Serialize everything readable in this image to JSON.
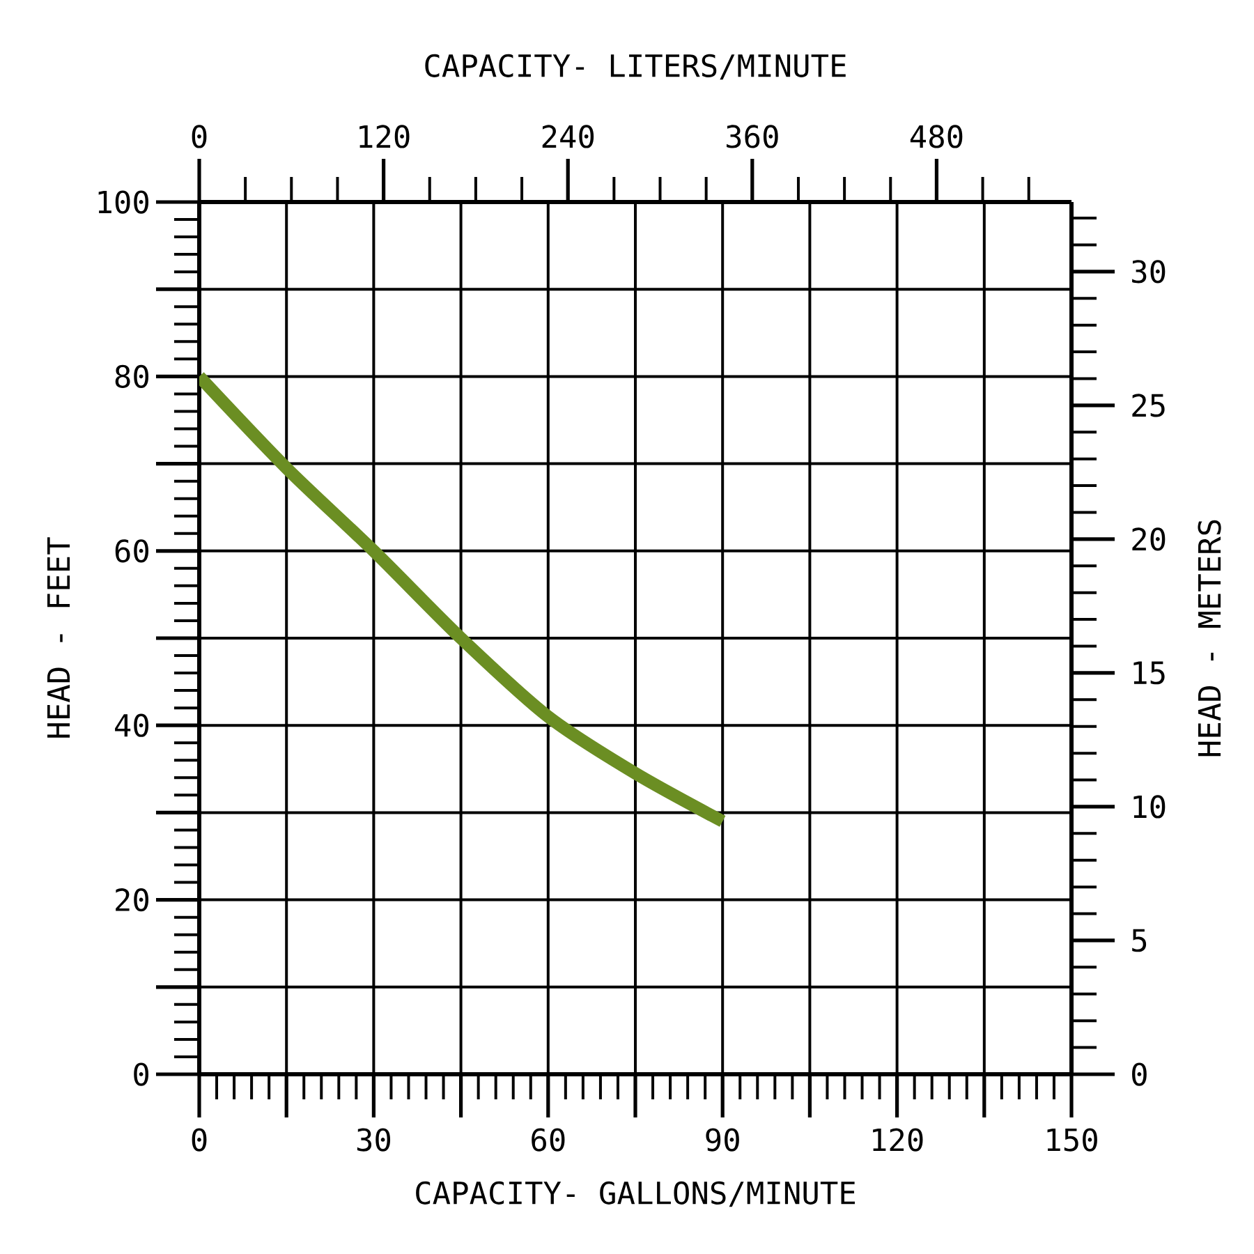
{
  "chart_data": {
    "type": "line",
    "xlabel": "CAPACITY- GALLONS/MINUTE",
    "x2label": "CAPACITY- LITERS/MINUTE",
    "ylabel": "HEAD - FEET",
    "y2label": "HEAD - METERS",
    "x": [
      0,
      15,
      30,
      45,
      60,
      75,
      90
    ],
    "series": [
      {
        "color": "#6b8e23",
        "values": [
          80,
          69.5,
          60,
          50,
          41,
          34.5,
          29
        ]
      }
    ],
    "xlim": [
      0,
      150
    ],
    "xticks": [
      0,
      {
        "value": 15,
        "label": null
      },
      30,
      {
        "value": 45,
        "label": null
      },
      60,
      {
        "value": 75,
        "label": null
      },
      90,
      {
        "value": 105,
        "label": null
      },
      120,
      {
        "value": 135,
        "label": null
      },
      150
    ],
    "ylim": [
      0,
      100
    ],
    "yticks": [
      0,
      {
        "value": 10,
        "label": null
      },
      20,
      {
        "value": 30,
        "label": null
      },
      40,
      {
        "value": 50,
        "label": null
      },
      60,
      {
        "value": 70,
        "label": null
      },
      80,
      {
        "value": 90,
        "label": null
      },
      100
    ],
    "x2lim": [
      0,
      567.8
    ],
    "x2ticks": [
      0,
      120,
      240,
      360,
      480
    ],
    "y2lim": [
      0,
      32.6
    ],
    "y2ticks": [
      0,
      5,
      10,
      15,
      20,
      25,
      30
    ],
    "grid": true,
    "line_style": "solid"
  }
}
